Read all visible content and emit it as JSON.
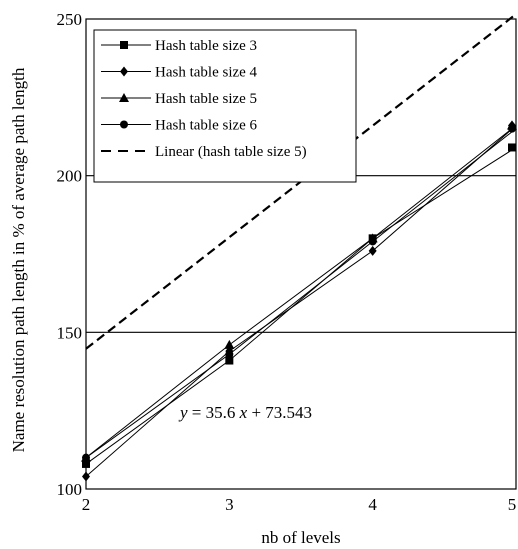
{
  "chart_data": {
    "type": "line",
    "title": "",
    "xlabel": "nb of levels",
    "ylabel": "Name resolution path length in % of average path length",
    "x": [
      2,
      3,
      4,
      5
    ],
    "xlim": [
      2,
      5
    ],
    "ylim": [
      100,
      250
    ],
    "xticks": [
      "2",
      "3",
      "4",
      "5"
    ],
    "yticks": [
      "100",
      "150",
      "200",
      "250"
    ],
    "grid": "horizontal lines at 150 and 200",
    "legend_position": "top-left",
    "series": [
      {
        "name": "Hash table size 3",
        "marker": "square",
        "values": [
          108,
          141,
          180,
          209
        ]
      },
      {
        "name": "Hash table size 4",
        "marker": "diamond",
        "values": [
          104,
          144,
          176,
          216
        ]
      },
      {
        "name": "Hash table size 5",
        "marker": "triangle",
        "values": [
          110,
          146,
          180,
          216
        ]
      },
      {
        "name": "Hash table size 6",
        "marker": "circle",
        "values": [
          110,
          143,
          179,
          215
        ]
      }
    ],
    "trendline": {
      "name": "Linear (hash table size 5)",
      "style": "dashed",
      "slope": 35.6,
      "intercept": 73.543
    },
    "annotation": {
      "y_var": "y",
      "eq_middle": " = 35.6 ",
      "x_var": "x",
      "eq_tail": " + 73.543"
    }
  }
}
